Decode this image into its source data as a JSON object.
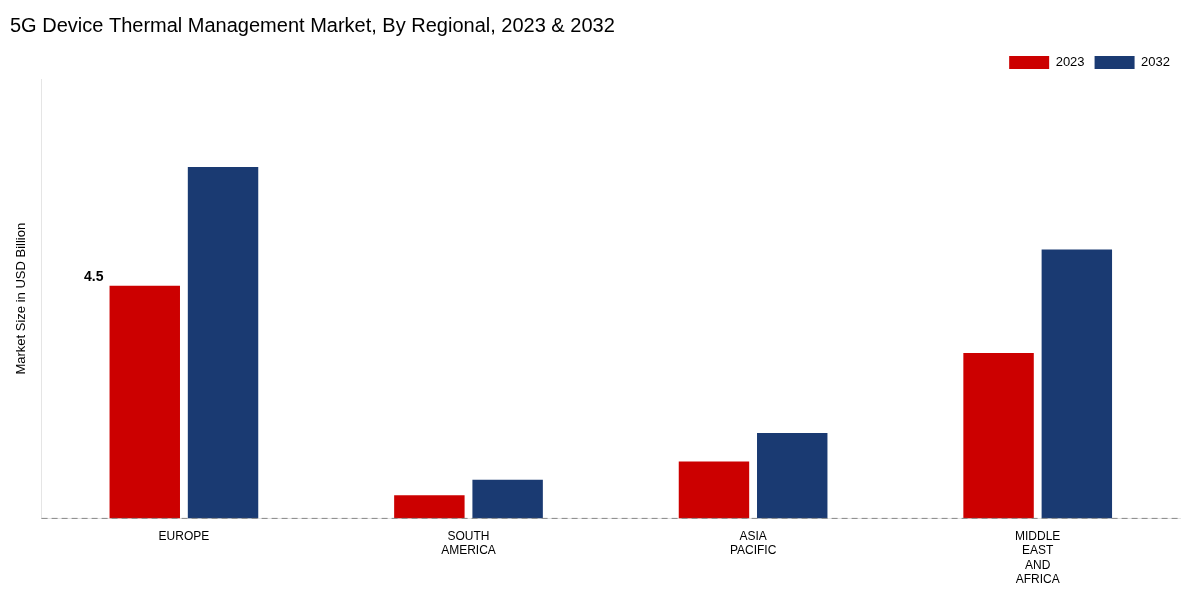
{
  "chart_data": {
    "type": "bar",
    "title": "5G Device Thermal Management Market, By Regional, 2023 & 2032",
    "ylabel": "Market Size in USD Billion",
    "categories": [
      "EUROPE",
      "SOUTH\nAMERICA",
      "ASIA\nPACIFIC",
      "MIDDLE\nEAST\nAND\nAFRICA"
    ],
    "series": [
      {
        "name": "2023",
        "color": "#cc0000",
        "values": [
          4.5,
          0.45,
          1.1,
          3.2
        ]
      },
      {
        "name": "2032",
        "color": "#1a3a72",
        "values": [
          6.8,
          0.75,
          1.65,
          5.2
        ]
      }
    ],
    "ylim": [
      0.0,
      8.5
    ],
    "yticks": [],
    "tick_labels": "x",
    "grid": false,
    "legend": "upper right",
    "annotations": [
      {
        "text": "4.5",
        "series": "2023",
        "category": "EUROPE"
      }
    ],
    "lines": [
      {
        "y": 0.0,
        "line_style": "dashed"
      }
    ]
  }
}
